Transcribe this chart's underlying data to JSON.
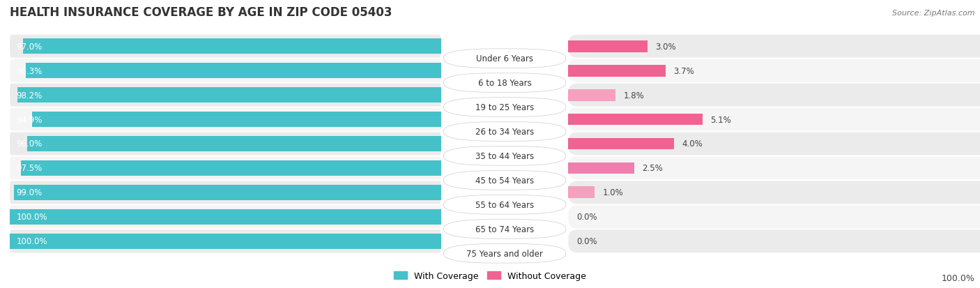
{
  "title": "HEALTH INSURANCE COVERAGE BY AGE IN ZIP CODE 05403",
  "source": "Source: ZipAtlas.com",
  "categories": [
    "Under 6 Years",
    "6 to 18 Years",
    "19 to 25 Years",
    "26 to 34 Years",
    "35 to 44 Years",
    "45 to 54 Years",
    "55 to 64 Years",
    "65 to 74 Years",
    "75 Years and older"
  ],
  "with_coverage": [
    97.0,
    96.3,
    98.2,
    94.9,
    96.0,
    97.5,
    99.0,
    100.0,
    100.0
  ],
  "without_coverage": [
    3.0,
    3.7,
    1.8,
    5.1,
    4.0,
    2.5,
    1.0,
    0.0,
    0.0
  ],
  "color_with": "#45C1C9",
  "color_without_bright": "#F06292",
  "color_without_light": "#F8BBD0",
  "light_pink_indices": [
    2,
    6,
    7,
    8
  ],
  "row_bg": "#E8E8E8",
  "bar_height": 0.62,
  "title_fontsize": 12,
  "label_fontsize": 8.5,
  "source_fontsize": 8,
  "legend_fontsize": 9,
  "bottom_label": "100.0%"
}
